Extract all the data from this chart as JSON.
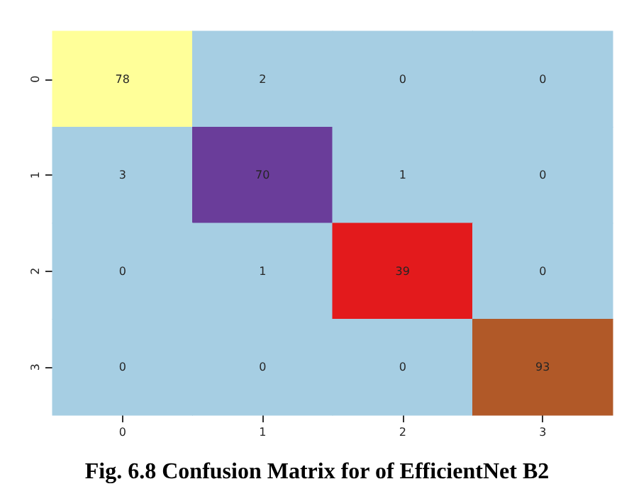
{
  "chart_data": {
    "type": "heatmap",
    "title": "Fig. 6.8 Confusion Matrix for of EfficientNet B2",
    "categories": [
      "0",
      "1",
      "2",
      "3"
    ],
    "y_categories": [
      "0",
      "1",
      "2",
      "3"
    ],
    "data_labels": true,
    "cells": [
      [
        78,
        2,
        0,
        0
      ],
      [
        3,
        70,
        1,
        0
      ],
      [
        0,
        1,
        39,
        0
      ],
      [
        0,
        0,
        0,
        93
      ]
    ]
  }
}
